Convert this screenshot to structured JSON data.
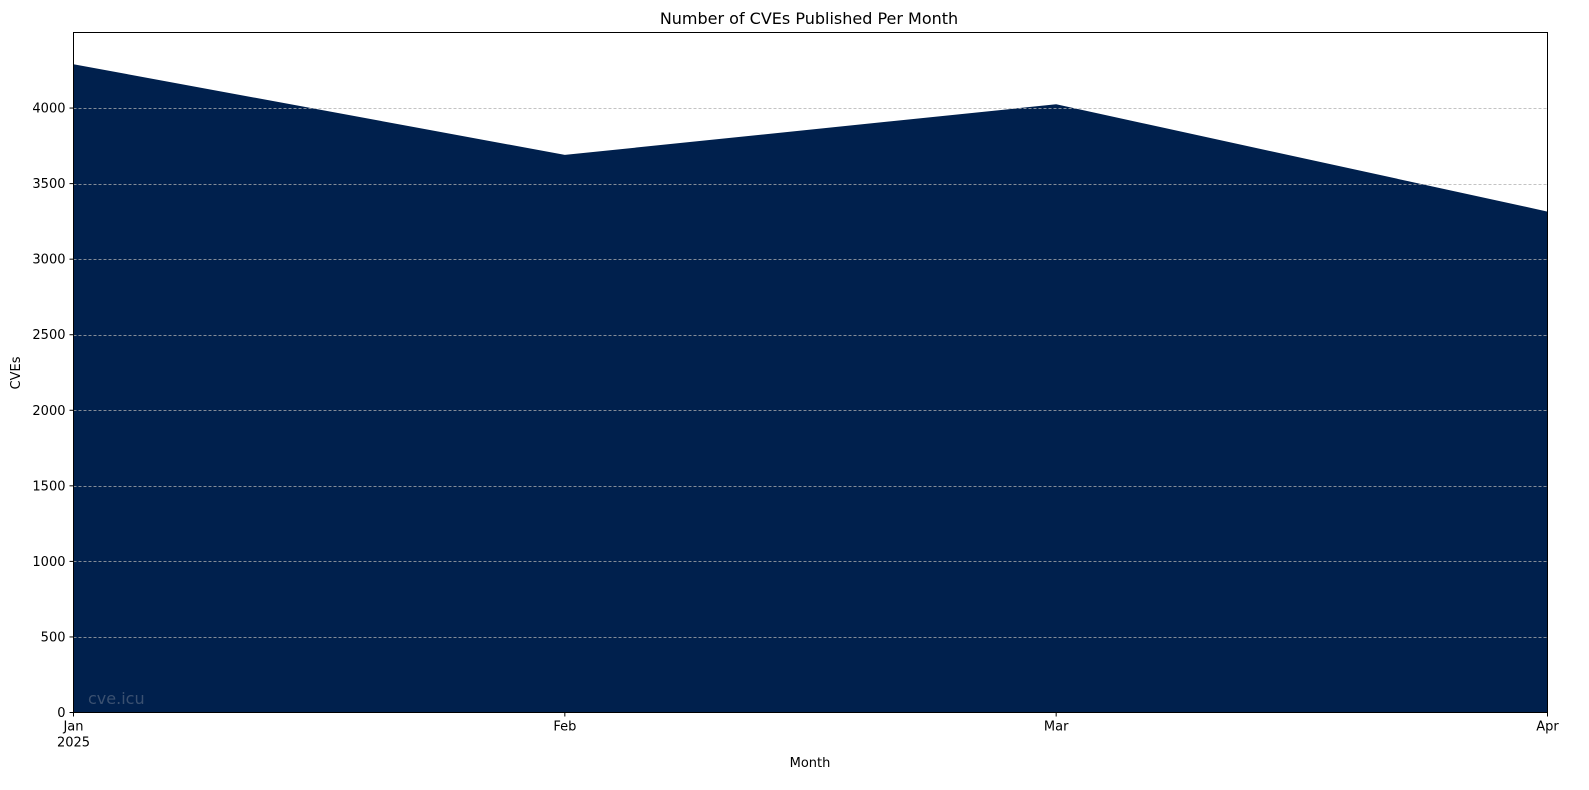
{
  "chart_data": {
    "type": "area",
    "title": "Number of CVEs Published Per Month",
    "xlabel": "Month",
    "ylabel": "CVEs",
    "x": [
      "2025-01",
      "2025-02",
      "2025-03",
      "2025-04"
    ],
    "x_tick_labels": [
      "Jan",
      "Feb",
      "Mar",
      "Apr"
    ],
    "x_tick_year": "2025",
    "values": [
      4290,
      3690,
      4025,
      3315
    ],
    "ylim": [
      0,
      4500
    ],
    "y_ticks": [
      0,
      500,
      1000,
      1500,
      2000,
      2500,
      3000,
      3500,
      4000
    ],
    "grid": "horizontal dashed",
    "fill_color": "#00204d",
    "watermark": "cve.icu"
  }
}
